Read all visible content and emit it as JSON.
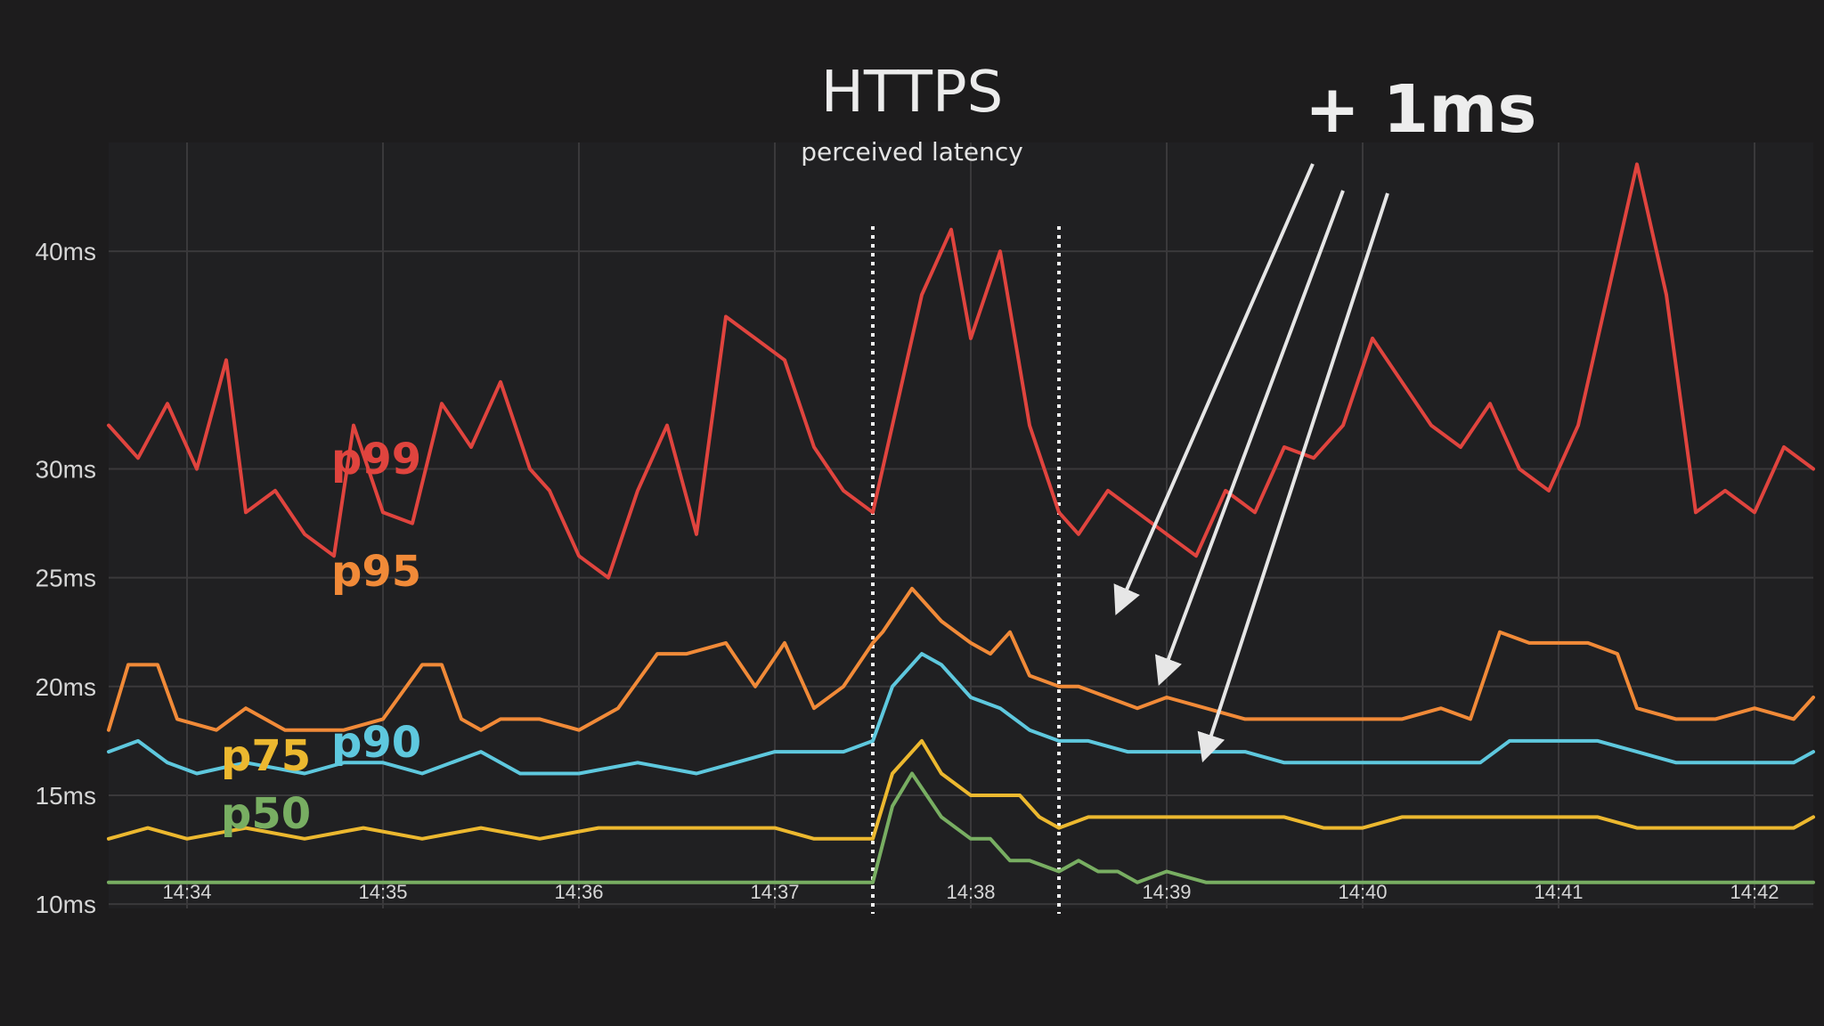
{
  "chart_data": {
    "type": "line",
    "title": "HTTPS",
    "subtitle": "perceived latency",
    "annotation": "+ 1ms",
    "y_unit": "ms",
    "ylim": [
      9.8,
      45
    ],
    "yticks": [
      10,
      15,
      20,
      25,
      30,
      40
    ],
    "ytick_labels": [
      "10ms",
      "15ms",
      "20ms",
      "25ms",
      "30ms",
      "40ms"
    ],
    "xlim": [
      14.0,
      512.0
    ],
    "xticks": [
      34,
      35,
      36,
      37,
      38,
      39,
      40,
      41,
      42
    ],
    "xtick_labels": [
      "14:34",
      "14:35",
      "14:36",
      "14:37",
      "14:38",
      "14:39",
      "14:40",
      "14:41",
      "14:42"
    ],
    "x_unit_note": "minutes past 14:00",
    "highlight_window": [
      37.5,
      38.45
    ],
    "grid": true,
    "legend": "inline labels",
    "series": [
      {
        "name": "p99",
        "color": "#e0443e",
        "x": [
          33.6,
          33.75,
          33.9,
          34.05,
          34.2,
          34.3,
          34.45,
          34.6,
          34.75,
          34.85,
          35.0,
          35.15,
          35.3,
          35.45,
          35.6,
          35.75,
          35.85,
          36.0,
          36.15,
          36.3,
          36.45,
          36.6,
          36.75,
          36.9,
          37.05,
          37.2,
          37.35,
          37.5,
          37.6,
          37.75,
          37.9,
          38.0,
          38.15,
          38.3,
          38.45,
          38.55,
          38.7,
          38.85,
          39.0,
          39.15,
          39.3,
          39.45,
          39.6,
          39.75,
          39.9,
          40.05,
          40.2,
          40.35,
          40.5,
          40.65,
          40.8,
          40.95,
          41.1,
          41.25,
          41.4,
          41.55,
          41.7,
          41.85,
          42.0,
          42.15,
          42.3
        ],
        "y": [
          32,
          30.5,
          33,
          30,
          35,
          28,
          29,
          27,
          26,
          32,
          28,
          27.5,
          33,
          31,
          34,
          30,
          29,
          26,
          25,
          29,
          32,
          27,
          37,
          36,
          35,
          31,
          29,
          28,
          32,
          38,
          41,
          36,
          40,
          32,
          28,
          27,
          29,
          28,
          27,
          26,
          29,
          28,
          31,
          30.5,
          32,
          36,
          34,
          32,
          31,
          33,
          30,
          29,
          32,
          38,
          44,
          38,
          28,
          29,
          28,
          31,
          30
        ]
      },
      {
        "name": "p95",
        "color": "#f18a38",
        "x": [
          33.6,
          33.7,
          33.85,
          33.95,
          34.15,
          34.3,
          34.5,
          34.65,
          34.8,
          35.0,
          35.2,
          35.3,
          35.4,
          35.5,
          35.6,
          35.8,
          36.0,
          36.2,
          36.4,
          36.55,
          36.75,
          36.9,
          37.05,
          37.2,
          37.35,
          37.5,
          37.55,
          37.7,
          37.85,
          38.0,
          38.1,
          38.2,
          38.3,
          38.45,
          38.55,
          38.7,
          38.85,
          39.0,
          39.2,
          39.4,
          39.6,
          39.8,
          40.0,
          40.2,
          40.4,
          40.55,
          40.7,
          40.85,
          41.0,
          41.15,
          41.3,
          41.4,
          41.6,
          41.8,
          42.0,
          42.2,
          42.3
        ],
        "y": [
          18,
          21,
          21,
          18.5,
          18,
          19,
          18,
          18,
          18,
          18.5,
          21,
          21,
          18.5,
          18,
          18.5,
          18.5,
          18,
          19,
          21.5,
          21.5,
          22,
          20,
          22,
          19,
          20,
          22,
          22.5,
          24.5,
          23,
          22,
          21.5,
          22.5,
          20.5,
          20,
          20,
          19.5,
          19,
          19.5,
          19,
          18.5,
          18.5,
          18.5,
          18.5,
          18.5,
          19,
          18.5,
          22.5,
          22,
          22,
          22,
          21.5,
          19,
          18.5,
          18.5,
          19,
          18.5,
          19.5
        ]
      },
      {
        "name": "p90",
        "color": "#5ec8de",
        "x": [
          33.6,
          33.75,
          33.9,
          34.05,
          34.3,
          34.6,
          34.8,
          35.0,
          35.2,
          35.35,
          35.5,
          35.7,
          36.0,
          36.3,
          36.6,
          36.8,
          37.0,
          37.2,
          37.35,
          37.5,
          37.6,
          37.75,
          37.85,
          38.0,
          38.15,
          38.3,
          38.45,
          38.6,
          38.8,
          39.0,
          39.2,
          39.4,
          39.6,
          39.8,
          40.0,
          40.2,
          40.4,
          40.6,
          40.75,
          40.9,
          41.05,
          41.2,
          41.4,
          41.6,
          41.8,
          42.0,
          42.2,
          42.3
        ],
        "y": [
          17,
          17.5,
          16.5,
          16,
          16.5,
          16,
          16.5,
          16.5,
          16,
          16.5,
          17,
          16,
          16,
          16.5,
          16,
          16.5,
          17,
          17,
          17,
          17.5,
          20,
          21.5,
          21,
          19.5,
          19,
          18,
          17.5,
          17.5,
          17,
          17,
          17,
          17,
          16.5,
          16.5,
          16.5,
          16.5,
          16.5,
          16.5,
          17.5,
          17.5,
          17.5,
          17.5,
          17,
          16.5,
          16.5,
          16.5,
          16.5,
          17
        ]
      },
      {
        "name": "p75",
        "color": "#ecb82f",
        "x": [
          33.6,
          33.8,
          34.0,
          34.3,
          34.6,
          34.9,
          35.2,
          35.5,
          35.8,
          36.1,
          36.4,
          36.7,
          37.0,
          37.2,
          37.35,
          37.5,
          37.6,
          37.75,
          37.85,
          38.0,
          38.1,
          38.25,
          38.35,
          38.45,
          38.6,
          38.8,
          39.0,
          39.2,
          39.4,
          39.6,
          39.8,
          40.0,
          40.2,
          40.4,
          40.6,
          40.8,
          41.0,
          41.2,
          41.4,
          41.6,
          41.8,
          42.0,
          42.2,
          42.3
        ],
        "y": [
          13,
          13.5,
          13,
          13.5,
          13,
          13.5,
          13,
          13.5,
          13,
          13.5,
          13.5,
          13.5,
          13.5,
          13,
          13,
          13,
          16,
          17.5,
          16,
          15,
          15,
          15,
          14,
          13.5,
          14,
          14,
          14,
          14,
          14,
          14,
          13.5,
          13.5,
          14,
          14,
          14,
          14,
          14,
          14,
          13.5,
          13.5,
          13.5,
          13.5,
          13.5,
          14
        ]
      },
      {
        "name": "p50",
        "color": "#78ae62",
        "x": [
          33.6,
          34.5,
          35.5,
          36.5,
          37.0,
          37.35,
          37.5,
          37.6,
          37.7,
          37.85,
          38.0,
          38.1,
          38.2,
          38.3,
          38.45,
          38.55,
          38.65,
          38.75,
          38.85,
          39.0,
          39.2,
          39.4,
          39.6,
          39.8,
          40.0,
          40.2,
          40.4,
          40.6,
          40.8,
          41.0,
          41.2,
          41.4,
          41.6,
          41.8,
          42.0,
          42.3
        ],
        "y": [
          11,
          11,
          11,
          11,
          11,
          11,
          11,
          14.5,
          16,
          14,
          13,
          13,
          12,
          12,
          11.5,
          12,
          11.5,
          11.5,
          11,
          11.5,
          11,
          11,
          11,
          11,
          11,
          11,
          11,
          11,
          11,
          11,
          11,
          11,
          11,
          11,
          11,
          11
        ]
      }
    ]
  }
}
